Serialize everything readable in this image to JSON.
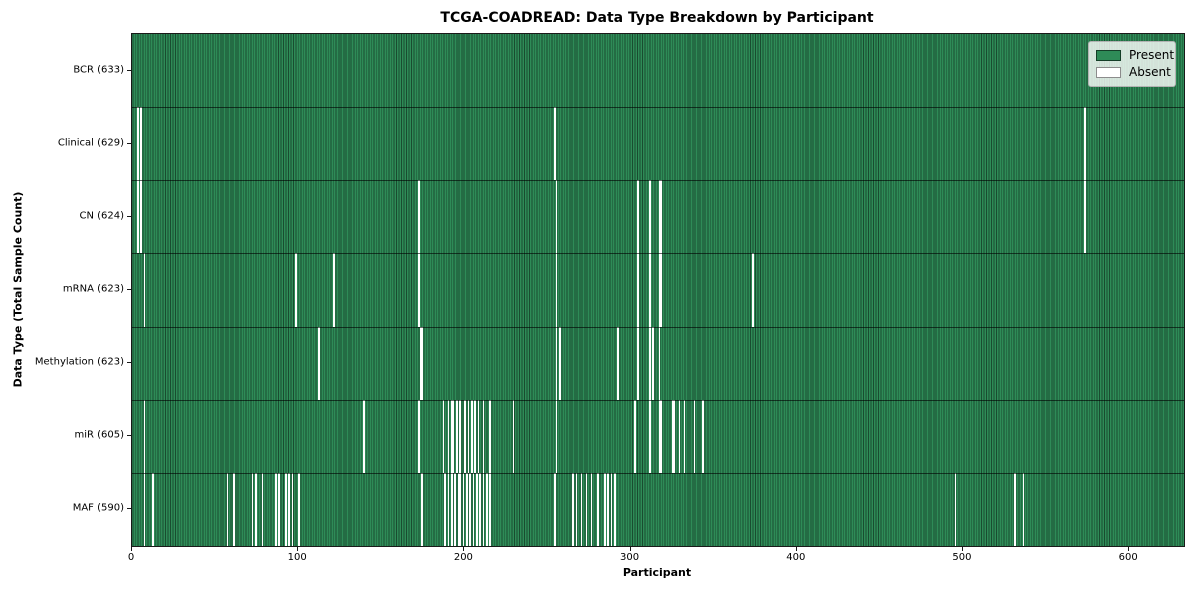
{
  "title": "TCGA-COADREAD: Data Type Breakdown by Participant",
  "axes": {
    "xlabel": "Participant",
    "ylabel": "Data Type (Total Sample Count)"
  },
  "legend": {
    "present_label": "Present",
    "absent_label": "Absent"
  },
  "colors": {
    "present": "#2E8B57",
    "absent": "#FFFFFF",
    "cell_edge": "rgba(0,0,0,0.45)",
    "legend_background": "rgba(255,255,255,0.8)"
  },
  "chart_data": {
    "type": "heatmap",
    "title": "TCGA-COADREAD: Data Type Breakdown by Participant",
    "xlabel": "Participant",
    "ylabel": "Data Type (Total Sample Count)",
    "legend_entries": [
      "Present",
      "Absent"
    ],
    "legend_position": "upper right",
    "n_participants": 633,
    "xlim": [
      0,
      633
    ],
    "x_ticks": [
      0,
      100,
      200,
      300,
      400,
      500,
      600
    ],
    "value_encoding": {
      "present": "green cell",
      "absent": "white cell"
    },
    "rows": [
      {
        "data_type": "BCR",
        "label": "BCR (633)",
        "total": 633,
        "absent_participants": []
      },
      {
        "data_type": "Clinical",
        "label": "Clinical (629)",
        "total": 629,
        "absent_participants": [
          3,
          5,
          254,
          573
        ]
      },
      {
        "data_type": "CN",
        "label": "CN (624)",
        "total": 624,
        "absent_participants": [
          3,
          5,
          172,
          255,
          304,
          311,
          317,
          318,
          573
        ]
      },
      {
        "data_type": "mRNA",
        "label": "mRNA (623)",
        "total": 623,
        "absent_participants": [
          7,
          98,
          121,
          172,
          255,
          304,
          311,
          317,
          318,
          373
        ]
      },
      {
        "data_type": "Methylation",
        "label": "Methylation (623)",
        "total": 623,
        "absent_participants": [
          112,
          173,
          174,
          255,
          257,
          292,
          304,
          311,
          313,
          317
        ]
      },
      {
        "data_type": "miR",
        "label": "miR (605)",
        "total": 605,
        "absent_participants": [
          7,
          139,
          172,
          187,
          190,
          192,
          193,
          195,
          197,
          200,
          202,
          204,
          206,
          208,
          211,
          215,
          229,
          255,
          302,
          311,
          317,
          318,
          325,
          326,
          329,
          332,
          338,
          343
        ]
      },
      {
        "data_type": "MAF",
        "label": "MAF (590)",
        "total": 590,
        "absent_participants": [
          7,
          12,
          57,
          61,
          72,
          74,
          78,
          86,
          88,
          92,
          94,
          96,
          100,
          174,
          188,
          190,
          192,
          194,
          196,
          197,
          199,
          201,
          203,
          205,
          207,
          209,
          211,
          213,
          215,
          254,
          265,
          267,
          270,
          273,
          276,
          280,
          284,
          286,
          288,
          290,
          495,
          531,
          536
        ]
      }
    ]
  }
}
